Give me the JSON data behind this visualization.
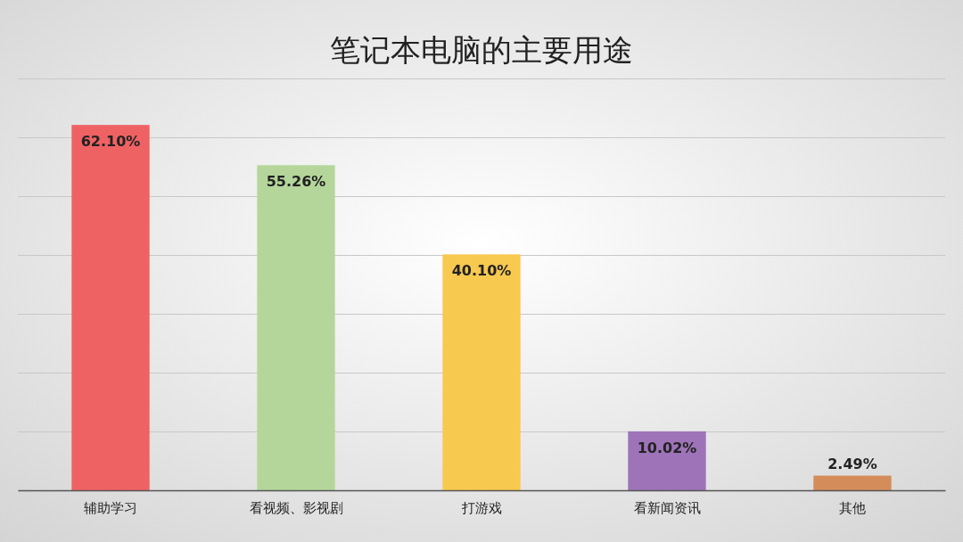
{
  "chart_data": {
    "type": "bar",
    "title": "笔记本电脑的主要用途",
    "categories": [
      "辅助学习",
      "看视频、影视剧",
      "打游戏",
      "看新闻资讯",
      "其他"
    ],
    "values": [
      62.1,
      55.26,
      40.1,
      10.02,
      2.49
    ],
    "colors": [
      "#ef6264",
      "#b5d69b",
      "#f8c94f",
      "#9e73b8",
      "#d48d5a"
    ],
    "value_labels": [
      "62.10%",
      "55.26%",
      "40.10%",
      "10.02%",
      "2.49%"
    ],
    "ylim": [
      0,
      70
    ],
    "yticks": [
      0,
      10,
      20,
      30,
      40,
      50,
      60,
      70
    ],
    "grid": "y",
    "tick_labels": "x"
  }
}
